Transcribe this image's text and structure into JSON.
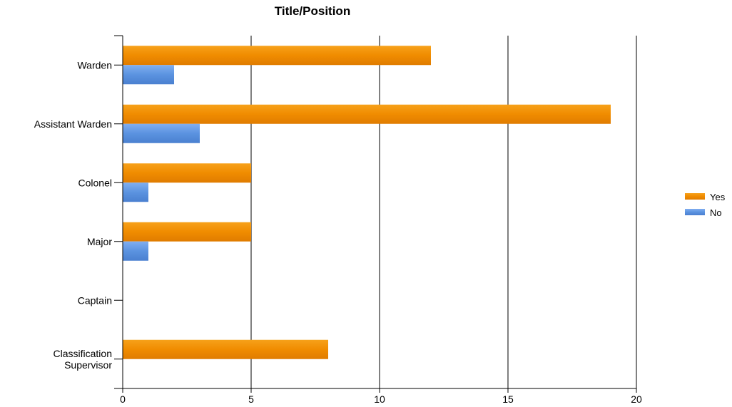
{
  "chart_data": {
    "type": "bar",
    "orientation": "horizontal",
    "title": "Title/Position",
    "categories": [
      "Warden",
      "Assistant Warden",
      "Colonel",
      "Major",
      "Captain",
      "Classification Supervisor"
    ],
    "category_lines": [
      [
        "Warden"
      ],
      [
        "Assistant Warden"
      ],
      [
        "Colonel"
      ],
      [
        "Major"
      ],
      [
        "Captain"
      ],
      [
        "Classification",
        "Supervisor"
      ]
    ],
    "series": [
      {
        "name": "Yes",
        "values": [
          12,
          19,
          5,
          5,
          0,
          8
        ],
        "color": "#f08c00"
      },
      {
        "name": "No",
        "values": [
          2,
          3,
          1,
          1,
          0,
          0
        ],
        "color": "#5b93e0"
      }
    ],
    "xlim": [
      0,
      20
    ],
    "x_ticks": [
      0,
      5,
      10,
      15,
      20
    ],
    "x_tick_labels": [
      "0",
      "5",
      "10",
      "15",
      "20"
    ],
    "grid": "vertical",
    "legend_position": "right"
  }
}
